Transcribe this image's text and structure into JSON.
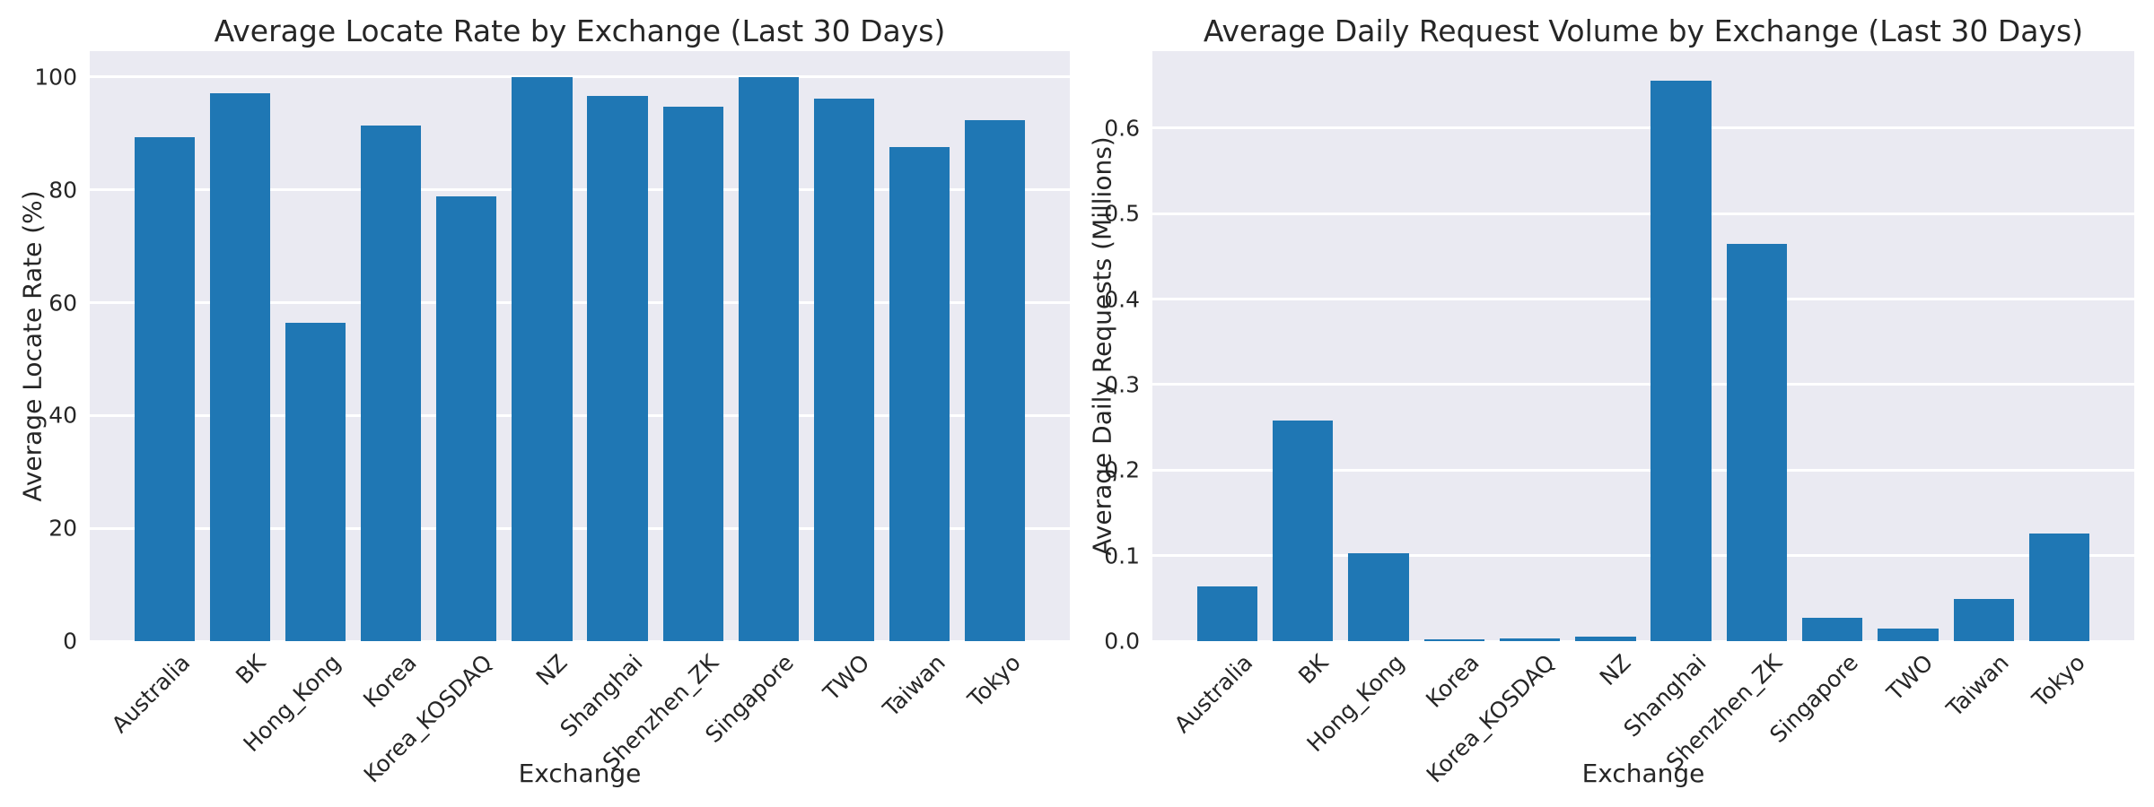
{
  "figure": {
    "background": "#ffffff"
  },
  "colors": {
    "bar": "#1f77b4",
    "plot_background": "#eaeaf2",
    "gridline": "#ffffff",
    "text": "#262626"
  },
  "chart_data": [
    {
      "type": "bar",
      "title": "Average Locate Rate by Exchange (Last 30 Days)",
      "xlabel": "Exchange",
      "ylabel": "Average Locate Rate (%)",
      "categories": [
        "Australia",
        "BK",
        "Hong_Kong",
        "Korea",
        "Korea_KOSDAQ",
        "NZ",
        "Shanghai",
        "Shenzhen_ZK",
        "Singapore",
        "TWO",
        "Taiwan",
        "Tokyo"
      ],
      "values": [
        89.3,
        97.1,
        56.4,
        91.4,
        78.9,
        100.0,
        96.7,
        94.7,
        100.0,
        96.1,
        87.6,
        92.3
      ],
      "ylim": [
        0,
        104.6
      ],
      "yticks": [
        0,
        20,
        40,
        60,
        80,
        100
      ],
      "ytick_labels": [
        "0",
        "20",
        "40",
        "60",
        "80",
        "100"
      ],
      "grid": true,
      "legend": "none",
      "bar_color": "#1f77b4"
    },
    {
      "type": "bar",
      "title": "Average Daily Request Volume by Exchange (Last 30 Days)",
      "xlabel": "Exchange",
      "ylabel": "Average Daily Requests (Millions)",
      "categories": [
        "Australia",
        "BK",
        "Hong_Kong",
        "Korea",
        "Korea_KOSDAQ",
        "NZ",
        "Shanghai",
        "Shenzhen_ZK",
        "Singapore",
        "TWO",
        "Taiwan",
        "Tokyo"
      ],
      "values": [
        0.064,
        0.258,
        0.103,
        0.002,
        0.003,
        0.005,
        0.655,
        0.465,
        0.027,
        0.015,
        0.049,
        0.126
      ],
      "ylim": [
        0,
        0.69
      ],
      "yticks": [
        0.0,
        0.1,
        0.2,
        0.3,
        0.4,
        0.5,
        0.6
      ],
      "ytick_labels": [
        "0.0",
        "0.1",
        "0.2",
        "0.3",
        "0.4",
        "0.5",
        "0.6"
      ],
      "grid": true,
      "legend": "none",
      "bar_color": "#1f77b4"
    }
  ]
}
